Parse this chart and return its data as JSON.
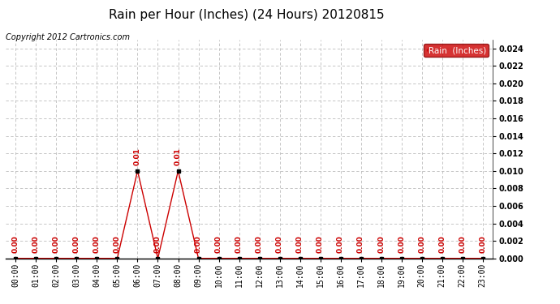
{
  "title": "Rain per Hour (Inches) (24 Hours) 20120815",
  "copyright": "Copyright 2012 Cartronics.com",
  "legend_label": "Rain  (Inches)",
  "hours": [
    "00:00",
    "01:00",
    "02:00",
    "03:00",
    "04:00",
    "05:00",
    "06:00",
    "07:00",
    "08:00",
    "09:00",
    "10:00",
    "11:00",
    "12:00",
    "13:00",
    "14:00",
    "15:00",
    "16:00",
    "17:00",
    "18:00",
    "19:00",
    "20:00",
    "21:00",
    "22:00",
    "23:00"
  ],
  "values": [
    0.0,
    0.0,
    0.0,
    0.0,
    0.0,
    0.0,
    0.01,
    0.0,
    0.01,
    0.0,
    0.0,
    0.0,
    0.0,
    0.0,
    0.0,
    0.0,
    0.0,
    0.0,
    0.0,
    0.0,
    0.0,
    0.0,
    0.0,
    0.0
  ],
  "ylim": [
    0,
    0.025
  ],
  "yticks": [
    0.0,
    0.002,
    0.004,
    0.006,
    0.008,
    0.01,
    0.012,
    0.014,
    0.016,
    0.018,
    0.02,
    0.022,
    0.024
  ],
  "line_color": "#cc0000",
  "marker_color": "#000000",
  "label_color": "#cc0000",
  "grid_color": "#bbbbbb",
  "background_color": "#ffffff",
  "legend_bg": "#cc0000",
  "legend_text_color": "#ffffff",
  "title_fontsize": 11,
  "copyright_fontsize": 7,
  "tick_fontsize": 7,
  "annotation_fontsize": 6.5
}
